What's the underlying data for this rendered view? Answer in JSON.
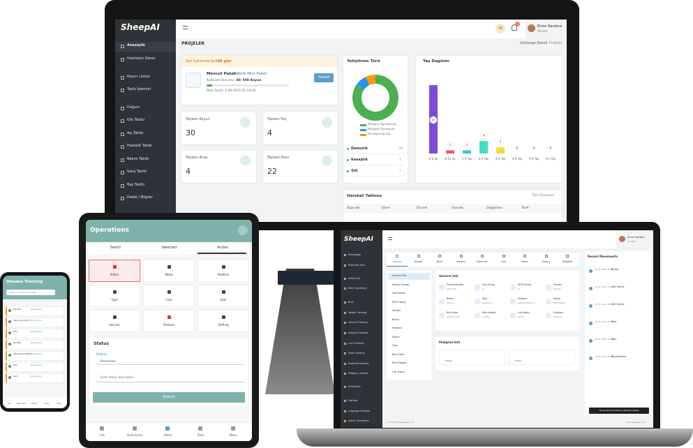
{
  "desktop": {
    "logo": "SheepAI",
    "lang": "TR",
    "notif": "3",
    "user_name": "Emre Hazdere",
    "user_role": "Yönetici",
    "menu": [
      "Anasayfa",
      "Hatırlatıcı Görev",
      "Koyun Listesi",
      "Toplu İşlemler",
      "Doğum",
      "Kilo Takibi",
      "Aşı Takibi",
      "Hastalık Takibi",
      "Bakım Takibi",
      "Satış Takibi",
      "Baş Takibi",
      "Padok / Bilgiler"
    ],
    "page_title": "PROJELER",
    "breadcrumb": [
      "Gösterge Paneli",
      "Projeler"
    ],
    "trial_label": "Son kullanma tarihi:",
    "trial_days": "29 gün",
    "package_label": "Mevcut Paket:",
    "package_name": "1-Aylık-Mini-Paket",
    "usage_label": "Kullanım Durumu:",
    "usage": "30/ 500 Koyun",
    "end_date": "Bitiş Tarihi: 2.09.2025 01:13:46",
    "upgrade": "Yükselt",
    "stats": [
      {
        "label": "Toplam Koyun",
        "value": "30"
      },
      {
        "label": "Toplam Koç",
        "value": "4"
      },
      {
        "label": "Toplam Anaç",
        "value": "4"
      },
      {
        "label": "Toplam Kuzu",
        "value": "22"
      }
    ],
    "breed_chart": {
      "type": "pie",
      "title": "Yetiştirme Türü",
      "labels": [
        "MK-Koyun Tipi Karaman",
        "MR-Koyun Tipi Kıvırcık",
        "MO-Koyun Tipi Ödi"
      ],
      "values": [
        85,
        8,
        7
      ],
      "colors": [
        "#4caf50",
        "#2196f3",
        "#ff9800"
      ]
    },
    "types": [
      {
        "name": "Damızlık",
        "count": "20"
      },
      {
        "name": "Kasaplık",
        "count": "1"
      },
      {
        "name": "Süt",
        "count": "1"
      }
    ],
    "age_chart": {
      "type": "bar",
      "title": "Yaş Dağılımı",
      "categories": [
        "0-6 Ay",
        "6-12 Ay",
        "1-2 Yaş",
        "2-3 Yaş",
        "3-4 Yaş",
        "4-5 Yaş",
        "5-6 Yaş",
        "6+ Yaş"
      ],
      "values": [
        22,
        1,
        1,
        4,
        2,
        0,
        0,
        0
      ],
      "colors": [
        "#7c4ddb",
        "#f0506e",
        "#2cc4e0",
        "#3ee0c4",
        "#f7d93a",
        "#9e9e9e",
        "#9e9e9e",
        "#9e9e9e"
      ],
      "ylim": [
        0,
        24
      ]
    },
    "movements_title": "Hareket Tablosu",
    "filter": "Tüm Zamanlar",
    "columns": [
      "Küpe No",
      "İşlem",
      "Önceki",
      "Sonraki",
      "Değiştiren",
      "Tarih"
    ]
  },
  "tablet": {
    "title": "Operations",
    "tabs": [
      "Select",
      "Selected",
      "Action"
    ],
    "actions": [
      "Status",
      "Weed",
      "Paddock",
      "Type",
      "Care",
      "Sale",
      "Vaccine",
      "Disease",
      "Shifting"
    ],
    "status_title": "Status",
    "status_label": "Status",
    "status_value": "Remember",
    "desc_placeholder": "Enter status description",
    "submit": "Submit",
    "nav": [
      "List",
      "Bulk Action",
      "Home",
      "Tools",
      "Menu"
    ]
  },
  "phone": {
    "title": "Disease Tracking",
    "search": "Search in disease records",
    "rows": [
      {
        "name": "Ma-464",
        "status": "Recovered"
      },
      {
        "name": "Mev-Copy-1007",
        "status": "Recovered"
      },
      {
        "name": "Test",
        "status": "Recovered"
      },
      {
        "name": "Ma-Test",
        "status": "Recovered"
      },
      {
        "name": "Mev-Tester-00001",
        "status": "Recovered"
      },
      {
        "name": "Test",
        "status": "Recovered"
      },
      {
        "name": "Test",
        "status": "Recovered"
      }
    ],
    "nav": [
      "List",
      "Bulk Action",
      "Home",
      "Tools",
      "Menu"
    ]
  },
  "laptop": {
    "logo": "SheepAI",
    "user_name": "Emre Hazdere",
    "user_role": "Yönetici",
    "menu": [
      "Homepage",
      "Reminder Task",
      "Sheep List",
      "Bulk Operations",
      "Birth",
      "Weight Tracking",
      "Vaccine Tracking",
      "Disease Tracking",
      "Care Tracking",
      "Sales Tracking",
      "Medicine tracking",
      "Paddock / Station",
      "Definitions",
      "Settings",
      "Language Settings",
      "Admin Operations"
    ],
    "tabs": [
      "General",
      "Weight",
      "Birth",
      "Disease",
      "Reminder",
      "Care",
      "Notes",
      "Gallery",
      "Pedigree"
    ],
    "info_menu": [
      "General Info",
      "Earing Change",
      "Ewe Earing",
      "RFID Earing",
      "Gender",
      "Breed",
      "Paddock",
      "Status",
      "Type",
      "Birth Date",
      "Birth Weight",
      "Life Status"
    ],
    "general_title": "General Info",
    "fields": [
      {
        "label": "Earing Number",
        "value": "KRaz-123"
      },
      {
        "label": "Ewe Earing",
        "value": "#"
      },
      {
        "label": "RFID Earing",
        "value": "#"
      },
      {
        "label": "Gender",
        "value": "Female"
      },
      {
        "label": "Breed",
        "value": "Merinos"
      },
      {
        "label": "Type",
        "value": "Breeding"
      },
      {
        "label": "Paddock",
        "value": "Default Paddock"
      },
      {
        "label": "Status",
        "value": "Test Status"
      },
      {
        "label": "Birth Date",
        "value": "08-Apr-2022"
      },
      {
        "label": "Birth Weight",
        "value": "3.00kg"
      },
      {
        "label": "Life Status",
        "value": "Active"
      },
      {
        "label": "Pedigree",
        "value": "Pedigree"
      }
    ],
    "pedigree_title": "Pedigree Info",
    "pedigree": [
      "Mother",
      "Father"
    ],
    "recent_title": "Recent Movements",
    "recent": [
      {
        "date": "26.01.2025 16:35",
        "title": "Breed"
      },
      {
        "date": "26.01.2025 16:35",
        "title": "Life Status"
      },
      {
        "date": "26.01.2025 16:35",
        "title": "Life Status"
      },
      {
        "date": "26.01.2025 16:35",
        "title": "Sale"
      },
      {
        "date": "26.01.2025 16:35",
        "title": "Sale"
      },
      {
        "date": "26.01.2025 16:35",
        "title": "Registration"
      }
    ],
    "action_button": "Purse-selected-select_selected_sheep",
    "footer_left": "© 2025 www.sheepai.com",
    "footer_right": "www.sheepai.com"
  }
}
